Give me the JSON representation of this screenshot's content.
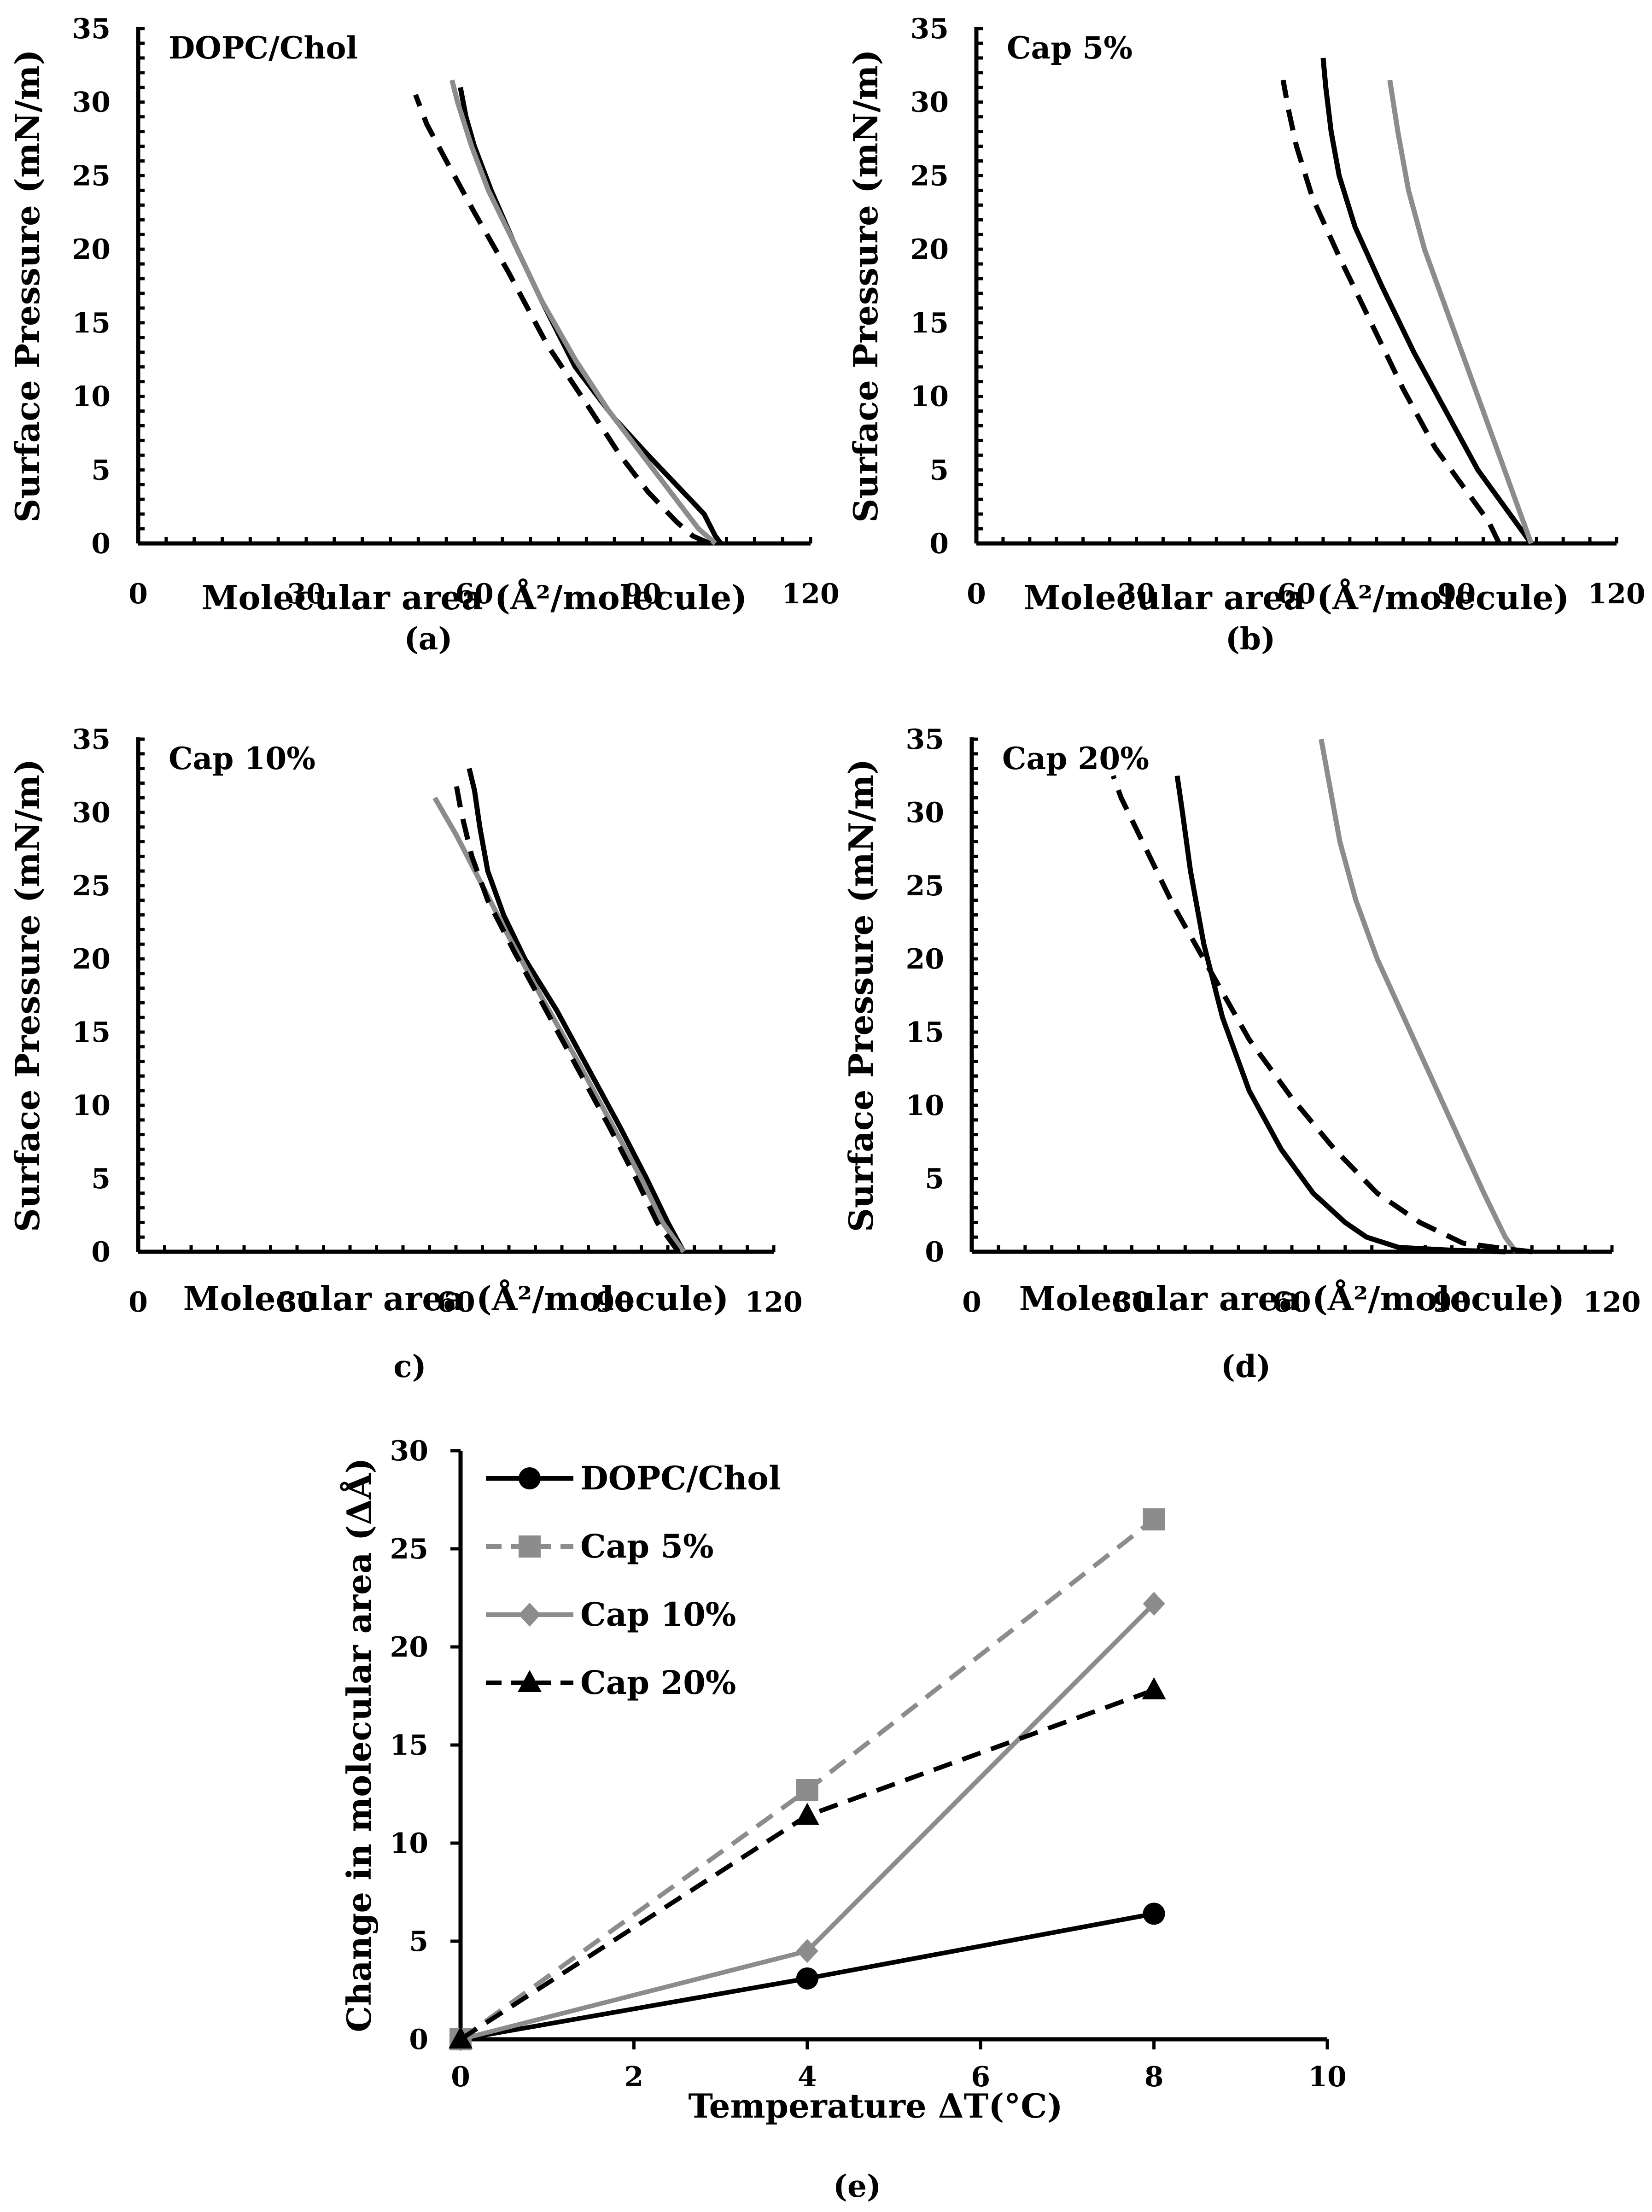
{
  "colors": {
    "black": "#000000",
    "gray": "#8c8c8c"
  },
  "isotherms": [
    {
      "panel_id": "a",
      "title": "DOPC/Chol",
      "caption": "(a)",
      "xlabel": "Molecular area (Å²/molecule)",
      "ylabel": "Surface Pressure (mN/m)",
      "xlim": [
        0,
        120
      ],
      "ylim": [
        0,
        35
      ],
      "x_ticks": [
        "0",
        "30",
        "60",
        "90",
        "120"
      ],
      "y_ticks": [
        "0",
        "5",
        "10",
        "15",
        "20",
        "25",
        "30",
        "35"
      ],
      "chart_data": {
        "type": "line",
        "series": [
          {
            "name": "solid-black",
            "color": "#000000",
            "dash": false,
            "points": [
              [
                104,
                0
              ],
              [
                103,
                0.5
              ],
              [
                101,
                2
              ],
              [
                96,
                4
              ],
              [
                91,
                6
              ],
              [
                85,
                8.5
              ],
              [
                78,
                12
              ],
              [
                72,
                16.5
              ],
              [
                67,
                20.5
              ],
              [
                63,
                24
              ],
              [
                60,
                27
              ],
              [
                58.5,
                29
              ],
              [
                57.5,
                31
              ]
            ]
          },
          {
            "name": "solid-gray",
            "color": "#8c8c8c",
            "dash": false,
            "points": [
              [
                103,
                0
              ],
              [
                100,
                1
              ],
              [
                96,
                3
              ],
              [
                90,
                6
              ],
              [
                84,
                9
              ],
              [
                78,
                12.5
              ],
              [
                72,
                16.5
              ],
              [
                67,
                20.5
              ],
              [
                62.5,
                24
              ],
              [
                59.5,
                27
              ],
              [
                57,
                30
              ],
              [
                56,
                31.5
              ]
            ]
          },
          {
            "name": "dashed-black",
            "color": "#000000",
            "dash": true,
            "points": [
              [
                102,
                0
              ],
              [
                99,
                0.5
              ],
              [
                96,
                1.5
              ],
              [
                91,
                3.5
              ],
              [
                86,
                6
              ],
              [
                80,
                9.5
              ],
              [
                73,
                13.5
              ],
              [
                66,
                18.5
              ],
              [
                60,
                22.5
              ],
              [
                55,
                26
              ],
              [
                51.5,
                28.5
              ],
              [
                49.5,
                30.5
              ]
            ]
          }
        ]
      }
    },
    {
      "panel_id": "b",
      "title": "Cap 5%",
      "caption": "(b)",
      "xlabel": "Molecular area (Å²/molecule)",
      "ylabel": "Surface Pressure (mN/m)",
      "xlim": [
        0,
        120
      ],
      "ylim": [
        0,
        35
      ],
      "x_ticks": [
        "0",
        "30",
        "60",
        "90",
        "120"
      ],
      "y_ticks": [
        "0",
        "5",
        "10",
        "15",
        "20",
        "25",
        "30",
        "35"
      ],
      "chart_data": {
        "type": "line",
        "series": [
          {
            "name": "solid-black",
            "color": "#000000",
            "dash": false,
            "points": [
              [
                104,
                0
              ],
              [
                102,
                1
              ],
              [
                99,
                2.5
              ],
              [
                94,
                5
              ],
              [
                88,
                9
              ],
              [
                82,
                13
              ],
              [
                76,
                17.5
              ],
              [
                71,
                21.5
              ],
              [
                68,
                25
              ],
              [
                66.5,
                28
              ],
              [
                65.5,
                31
              ],
              [
                65,
                33
              ]
            ]
          },
          {
            "name": "solid-gray",
            "color": "#8c8c8c",
            "dash": false,
            "points": [
              [
                104,
                0
              ],
              [
                102,
                2
              ],
              [
                99,
                5
              ],
              [
                96,
                8
              ],
              [
                92,
                12
              ],
              [
                88,
                16
              ],
              [
                84,
                20
              ],
              [
                81,
                24
              ],
              [
                79,
                28
              ],
              [
                77.5,
                31.5
              ]
            ]
          },
          {
            "name": "dashed-black",
            "color": "#000000",
            "dash": true,
            "points": [
              [
                98,
                0
              ],
              [
                96,
                1.5
              ],
              [
                92,
                3.5
              ],
              [
                86,
                6.5
              ],
              [
                80,
                10.5
              ],
              [
                74,
                15
              ],
              [
                68,
                19.5
              ],
              [
                63,
                23.5
              ],
              [
                60,
                27
              ],
              [
                58.5,
                29.5
              ],
              [
                57.5,
                31.5
              ]
            ]
          }
        ]
      }
    },
    {
      "panel_id": "c",
      "title": "Cap 10%",
      "caption": "c)",
      "xlabel": "Molecular area (Å²/molecule)",
      "ylabel": "Surface Pressure (mN/m)",
      "xlim": [
        0,
        120
      ],
      "ylim": [
        0,
        35
      ],
      "x_ticks": [
        "0",
        "30",
        "60",
        "90",
        "120"
      ],
      "y_ticks": [
        "0",
        "5",
        "10",
        "15",
        "20",
        "25",
        "30",
        "35"
      ],
      "chart_data": {
        "type": "line",
        "series": [
          {
            "name": "solid-black",
            "color": "#000000",
            "dash": false,
            "points": [
              [
                103,
                0
              ],
              [
                100,
                2
              ],
              [
                96,
                5
              ],
              [
                91,
                8.5
              ],
              [
                85,
                12.5
              ],
              [
                79,
                16.5
              ],
              [
                73,
                20
              ],
              [
                69,
                23
              ],
              [
                66,
                26
              ],
              [
                64.5,
                29
              ],
              [
                63.5,
                31.5
              ],
              [
                62.5,
                33
              ]
            ]
          },
          {
            "name": "solid-gray",
            "color": "#8c8c8c",
            "dash": false,
            "points": [
              [
                103,
                0
              ],
              [
                99,
                2
              ],
              [
                95,
                5
              ],
              [
                89,
                9
              ],
              [
                83,
                13
              ],
              [
                76,
                17.5
              ],
              [
                70,
                21.5
              ],
              [
                65,
                25
              ],
              [
                60,
                28.5
              ],
              [
                56,
                31
              ]
            ]
          },
          {
            "name": "dashed-black",
            "color": "#000000",
            "dash": true,
            "points": [
              [
                102,
                0
              ],
              [
                98,
                2
              ],
              [
                94,
                5
              ],
              [
                89,
                8.5
              ],
              [
                83,
                12.5
              ],
              [
                77,
                16.5
              ],
              [
                71,
                20.5
              ],
              [
                66,
                24
              ],
              [
                63,
                27
              ],
              [
                61,
                30
              ],
              [
                60,
                32
              ]
            ]
          }
        ]
      }
    },
    {
      "panel_id": "d",
      "title": "Cap 20%",
      "caption": "(d)",
      "xlabel": "Molecular area (Å²/molecule)",
      "ylabel": "Surface Pressure (mN/m)",
      "xlim": [
        0,
        120
      ],
      "ylim": [
        0,
        35
      ],
      "x_ticks": [
        "0",
        "30",
        "60",
        "90",
        "120"
      ],
      "y_ticks": [
        "0",
        "5",
        "10",
        "15",
        "20",
        "25",
        "30",
        "35"
      ],
      "chart_data": {
        "type": "line",
        "series": [
          {
            "name": "solid-black",
            "color": "#000000",
            "dash": false,
            "points": [
              [
                100,
                0
              ],
              [
                90,
                0.1
              ],
              [
                80,
                0.3
              ],
              [
                74,
                1
              ],
              [
                70,
                2
              ],
              [
                64,
                4
              ],
              [
                58,
                7
              ],
              [
                52,
                11
              ],
              [
                47,
                16
              ],
              [
                43.5,
                21
              ],
              [
                41,
                26
              ],
              [
                39.5,
                30
              ],
              [
                38.5,
                32.5
              ]
            ]
          },
          {
            "name": "solid-gray",
            "color": "#8c8c8c",
            "dash": false,
            "points": [
              [
                102,
                0
              ],
              [
                100,
                1
              ],
              [
                96,
                4
              ],
              [
                91,
                8
              ],
              [
                86,
                12
              ],
              [
                81,
                16
              ],
              [
                76,
                20
              ],
              [
                72,
                24
              ],
              [
                69,
                28
              ],
              [
                67,
                32
              ],
              [
                65.5,
                35
              ]
            ]
          },
          {
            "name": "dashed-black",
            "color": "#000000",
            "dash": true,
            "points": [
              [
                105,
                0
              ],
              [
                100,
                0.2
              ],
              [
                92,
                0.6
              ],
              [
                84,
                2
              ],
              [
                76,
                4
              ],
              [
                68,
                7
              ],
              [
                60,
                10.5
              ],
              [
                52,
                14.5
              ],
              [
                45,
                19
              ],
              [
                38,
                23.5
              ],
              [
                32,
                28
              ],
              [
                28,
                31
              ],
              [
                26.5,
                32.5
              ]
            ]
          }
        ]
      }
    }
  ],
  "panel_e": {
    "caption": "(e)",
    "xlabel": "Temperature ΔT(°C)",
    "ylabel": "Change in molecular area (ΔÅ)",
    "x_ticks": [
      "0",
      "2",
      "4",
      "6",
      "8",
      "10"
    ],
    "y_ticks": [
      "0",
      "5",
      "10",
      "15",
      "20",
      "25",
      "30"
    ],
    "chart_data": {
      "type": "line",
      "xlim": [
        0,
        10
      ],
      "ylim": [
        0,
        30
      ],
      "x": [
        0,
        4,
        8
      ],
      "legend": "top-left",
      "series": [
        {
          "name": "DOPC/Chol",
          "values": [
            0,
            3.1,
            6.4
          ],
          "color": "#000000",
          "dash": false,
          "marker": "circle"
        },
        {
          "name": "Cap 5%",
          "values": [
            0,
            12.7,
            26.5
          ],
          "color": "#8c8c8c",
          "dash": true,
          "marker": "square"
        },
        {
          "name": "Cap 10%",
          "values": [
            0,
            4.5,
            22.2
          ],
          "color": "#8c8c8c",
          "dash": false,
          "marker": "diamond"
        },
        {
          "name": "Cap 20%",
          "values": [
            0,
            11.4,
            17.8
          ],
          "color": "#000000",
          "dash": true,
          "marker": "triangle"
        }
      ]
    }
  }
}
